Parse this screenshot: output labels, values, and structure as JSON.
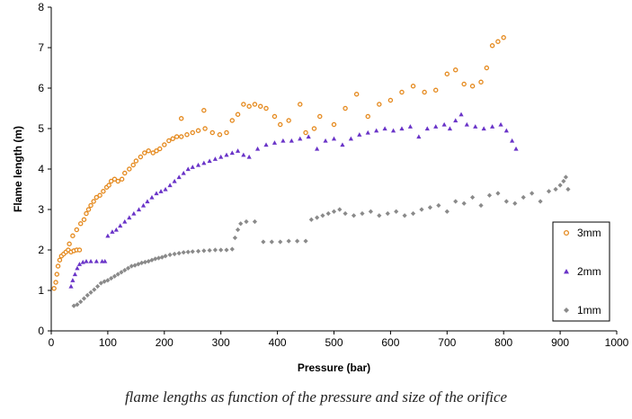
{
  "chart_data": {
    "type": "scatter",
    "title": "",
    "xlabel": "Pressure (bar)",
    "ylabel": "Flame length (m)",
    "xlim": [
      0,
      1000
    ],
    "ylim": [
      0,
      8
    ],
    "xticks": [
      0,
      100,
      200,
      300,
      400,
      500,
      600,
      700,
      800,
      900,
      1000
    ],
    "yticks": [
      0,
      1,
      2,
      3,
      4,
      5,
      6,
      7,
      8
    ],
    "grid": false,
    "legend_position": "right",
    "series": [
      {
        "name": "3mm",
        "color": "#e58a1f",
        "marker": "circle",
        "points": [
          [
            5,
            1.05
          ],
          [
            8,
            1.2
          ],
          [
            10,
            1.4
          ],
          [
            12,
            1.6
          ],
          [
            15,
            1.75
          ],
          [
            18,
            1.85
          ],
          [
            22,
            1.9
          ],
          [
            26,
            1.95
          ],
          [
            30,
            2.0
          ],
          [
            35,
            1.95
          ],
          [
            40,
            1.98
          ],
          [
            45,
            2.0
          ],
          [
            50,
            2.0
          ],
          [
            32,
            2.15
          ],
          [
            38,
            2.35
          ],
          [
            45,
            2.5
          ],
          [
            52,
            2.65
          ],
          [
            58,
            2.75
          ],
          [
            62,
            2.9
          ],
          [
            66,
            3.0
          ],
          [
            70,
            3.1
          ],
          [
            75,
            3.2
          ],
          [
            80,
            3.3
          ],
          [
            86,
            3.35
          ],
          [
            92,
            3.45
          ],
          [
            98,
            3.55
          ],
          [
            102,
            3.6
          ],
          [
            106,
            3.7
          ],
          [
            112,
            3.75
          ],
          [
            118,
            3.7
          ],
          [
            125,
            3.75
          ],
          [
            130,
            3.9
          ],
          [
            138,
            4.0
          ],
          [
            145,
            4.1
          ],
          [
            150,
            4.2
          ],
          [
            158,
            4.3
          ],
          [
            165,
            4.4
          ],
          [
            172,
            4.45
          ],
          [
            180,
            4.4
          ],
          [
            186,
            4.45
          ],
          [
            192,
            4.5
          ],
          [
            200,
            4.6
          ],
          [
            208,
            4.7
          ],
          [
            215,
            4.75
          ],
          [
            222,
            4.8
          ],
          [
            230,
            4.8
          ],
          [
            240,
            4.85
          ],
          [
            250,
            4.9
          ],
          [
            260,
            4.95
          ],
          [
            272,
            5.0
          ],
          [
            285,
            4.9
          ],
          [
            298,
            4.85
          ],
          [
            310,
            4.9
          ],
          [
            320,
            5.2
          ],
          [
            230,
            5.25
          ],
          [
            270,
            5.45
          ],
          [
            330,
            5.35
          ],
          [
            340,
            5.6
          ],
          [
            350,
            5.55
          ],
          [
            360,
            5.6
          ],
          [
            370,
            5.55
          ],
          [
            380,
            5.5
          ],
          [
            395,
            5.3
          ],
          [
            405,
            5.1
          ],
          [
            420,
            5.2
          ],
          [
            440,
            5.6
          ],
          [
            450,
            4.9
          ],
          [
            465,
            5.0
          ],
          [
            475,
            5.3
          ],
          [
            500,
            5.1
          ],
          [
            520,
            5.5
          ],
          [
            540,
            5.85
          ],
          [
            560,
            5.3
          ],
          [
            580,
            5.6
          ],
          [
            600,
            5.7
          ],
          [
            620,
            5.9
          ],
          [
            640,
            6.05
          ],
          [
            660,
            5.9
          ],
          [
            680,
            5.95
          ],
          [
            700,
            6.35
          ],
          [
            715,
            6.45
          ],
          [
            730,
            6.1
          ],
          [
            745,
            6.05
          ],
          [
            760,
            6.15
          ],
          [
            770,
            6.5
          ],
          [
            780,
            7.05
          ],
          [
            790,
            7.15
          ],
          [
            800,
            7.25
          ]
        ]
      },
      {
        "name": "2mm",
        "color": "#6a34c8",
        "marker": "triangle",
        "points": [
          [
            35,
            1.1
          ],
          [
            38,
            1.25
          ],
          [
            42,
            1.4
          ],
          [
            46,
            1.55
          ],
          [
            50,
            1.65
          ],
          [
            56,
            1.7
          ],
          [
            62,
            1.72
          ],
          [
            70,
            1.72
          ],
          [
            80,
            1.72
          ],
          [
            90,
            1.72
          ],
          [
            95,
            1.72
          ],
          [
            100,
            2.35
          ],
          [
            108,
            2.45
          ],
          [
            115,
            2.5
          ],
          [
            122,
            2.6
          ],
          [
            130,
            2.7
          ],
          [
            138,
            2.8
          ],
          [
            146,
            2.9
          ],
          [
            155,
            3.0
          ],
          [
            163,
            3.1
          ],
          [
            170,
            3.2
          ],
          [
            178,
            3.3
          ],
          [
            186,
            3.4
          ],
          [
            194,
            3.45
          ],
          [
            202,
            3.5
          ],
          [
            210,
            3.6
          ],
          [
            218,
            3.7
          ],
          [
            226,
            3.8
          ],
          [
            234,
            3.9
          ],
          [
            242,
            4.0
          ],
          [
            250,
            4.05
          ],
          [
            260,
            4.1
          ],
          [
            270,
            4.15
          ],
          [
            280,
            4.2
          ],
          [
            290,
            4.25
          ],
          [
            300,
            4.3
          ],
          [
            310,
            4.35
          ],
          [
            320,
            4.4
          ],
          [
            330,
            4.45
          ],
          [
            340,
            4.35
          ],
          [
            350,
            4.3
          ],
          [
            365,
            4.5
          ],
          [
            380,
            4.6
          ],
          [
            395,
            4.65
          ],
          [
            410,
            4.7
          ],
          [
            425,
            4.7
          ],
          [
            440,
            4.75
          ],
          [
            455,
            4.8
          ],
          [
            470,
            4.5
          ],
          [
            485,
            4.7
          ],
          [
            500,
            4.75
          ],
          [
            515,
            4.6
          ],
          [
            530,
            4.75
          ],
          [
            545,
            4.85
          ],
          [
            560,
            4.9
          ],
          [
            575,
            4.95
          ],
          [
            590,
            5.0
          ],
          [
            605,
            4.95
          ],
          [
            620,
            5.0
          ],
          [
            635,
            5.05
          ],
          [
            650,
            4.8
          ],
          [
            665,
            5.0
          ],
          [
            680,
            5.05
          ],
          [
            695,
            5.1
          ],
          [
            705,
            5.0
          ],
          [
            715,
            5.2
          ],
          [
            725,
            5.35
          ],
          [
            735,
            5.1
          ],
          [
            750,
            5.05
          ],
          [
            765,
            5.0
          ],
          [
            780,
            5.05
          ],
          [
            795,
            5.1
          ],
          [
            805,
            4.95
          ],
          [
            815,
            4.7
          ],
          [
            822,
            4.5
          ]
        ]
      },
      {
        "name": "1mm",
        "color": "#8a8a8a",
        "marker": "diamond",
        "points": [
          [
            40,
            0.62
          ],
          [
            46,
            0.65
          ],
          [
            52,
            0.72
          ],
          [
            58,
            0.8
          ],
          [
            64,
            0.88
          ],
          [
            70,
            0.95
          ],
          [
            76,
            1.02
          ],
          [
            82,
            1.1
          ],
          [
            88,
            1.18
          ],
          [
            94,
            1.22
          ],
          [
            100,
            1.25
          ],
          [
            106,
            1.3
          ],
          [
            112,
            1.35
          ],
          [
            118,
            1.4
          ],
          [
            124,
            1.45
          ],
          [
            130,
            1.5
          ],
          [
            136,
            1.55
          ],
          [
            142,
            1.6
          ],
          [
            148,
            1.62
          ],
          [
            154,
            1.65
          ],
          [
            160,
            1.68
          ],
          [
            166,
            1.7
          ],
          [
            172,
            1.72
          ],
          [
            178,
            1.75
          ],
          [
            184,
            1.78
          ],
          [
            190,
            1.8
          ],
          [
            196,
            1.82
          ],
          [
            202,
            1.85
          ],
          [
            210,
            1.88
          ],
          [
            218,
            1.9
          ],
          [
            226,
            1.92
          ],
          [
            234,
            1.94
          ],
          [
            242,
            1.95
          ],
          [
            250,
            1.96
          ],
          [
            260,
            1.97
          ],
          [
            270,
            1.98
          ],
          [
            280,
            1.99
          ],
          [
            290,
            2.0
          ],
          [
            300,
            2.0
          ],
          [
            310,
            2.0
          ],
          [
            320,
            2.02
          ],
          [
            325,
            2.3
          ],
          [
            330,
            2.5
          ],
          [
            335,
            2.65
          ],
          [
            345,
            2.7
          ],
          [
            360,
            2.7
          ],
          [
            375,
            2.2
          ],
          [
            390,
            2.2
          ],
          [
            405,
            2.2
          ],
          [
            420,
            2.22
          ],
          [
            435,
            2.22
          ],
          [
            450,
            2.22
          ],
          [
            460,
            2.75
          ],
          [
            470,
            2.8
          ],
          [
            480,
            2.85
          ],
          [
            490,
            2.9
          ],
          [
            500,
            2.95
          ],
          [
            510,
            3.0
          ],
          [
            520,
            2.9
          ],
          [
            535,
            2.85
          ],
          [
            550,
            2.9
          ],
          [
            565,
            2.95
          ],
          [
            580,
            2.85
          ],
          [
            595,
            2.9
          ],
          [
            610,
            2.95
          ],
          [
            625,
            2.85
          ],
          [
            640,
            2.9
          ],
          [
            655,
            3.0
          ],
          [
            670,
            3.05
          ],
          [
            685,
            3.1
          ],
          [
            700,
            2.95
          ],
          [
            715,
            3.2
          ],
          [
            730,
            3.15
          ],
          [
            745,
            3.3
          ],
          [
            760,
            3.1
          ],
          [
            775,
            3.35
          ],
          [
            790,
            3.4
          ],
          [
            805,
            3.2
          ],
          [
            820,
            3.15
          ],
          [
            835,
            3.3
          ],
          [
            850,
            3.4
          ],
          [
            865,
            3.2
          ],
          [
            880,
            3.45
          ],
          [
            892,
            3.5
          ],
          [
            900,
            3.6
          ],
          [
            906,
            3.7
          ],
          [
            910,
            3.8
          ],
          [
            914,
            3.5
          ]
        ]
      }
    ]
  },
  "caption": "flame lengths as function of the pressure and size of the orifice"
}
